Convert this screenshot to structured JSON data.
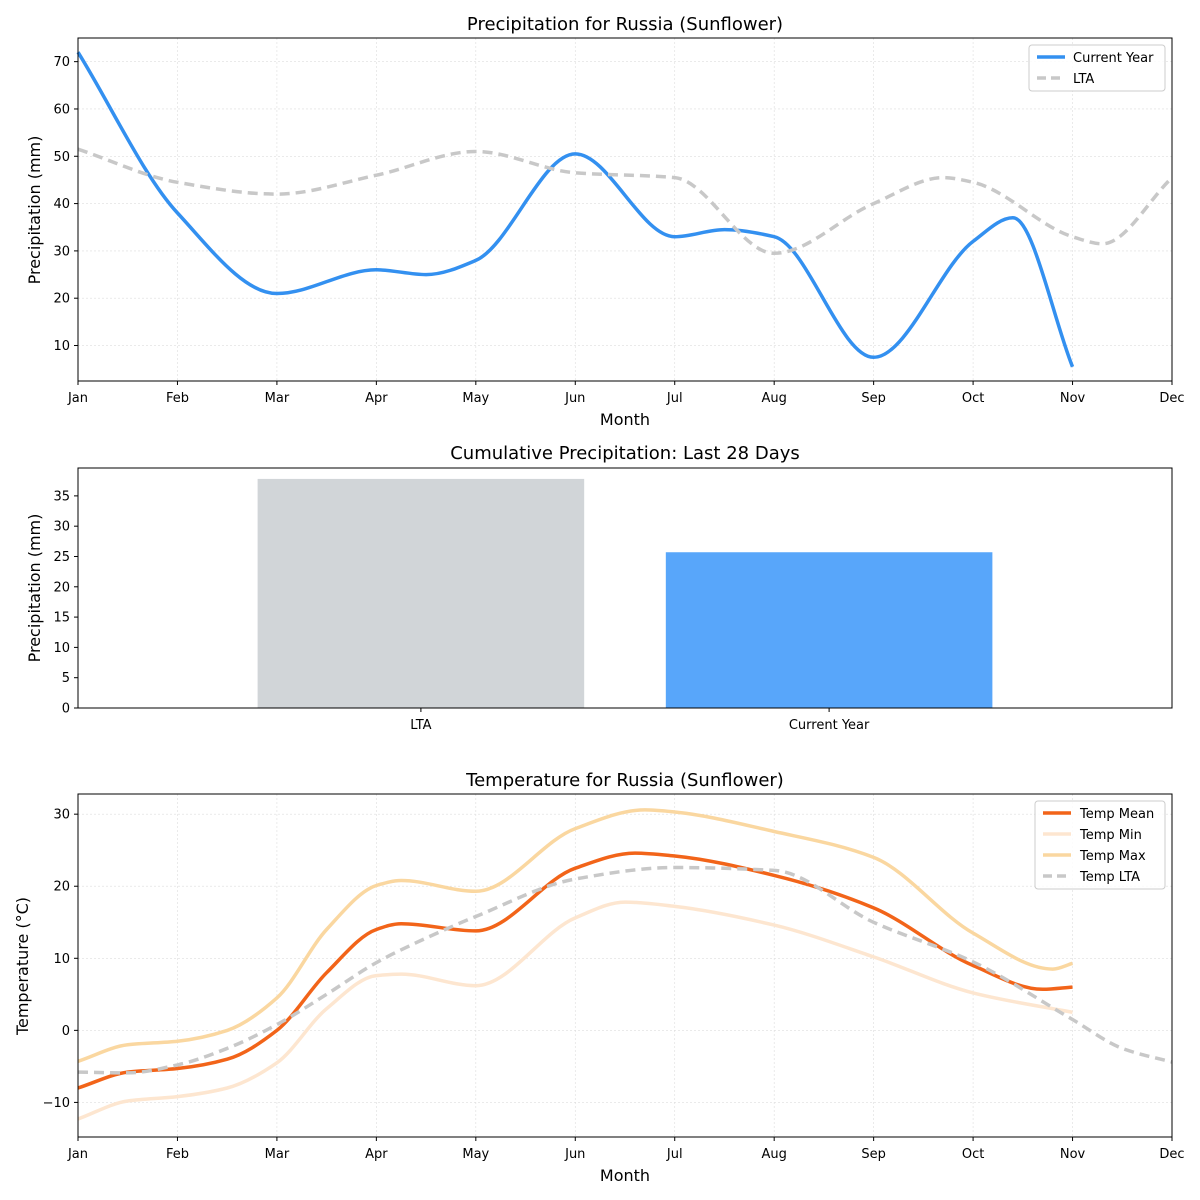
{
  "chart_data": [
    {
      "type": "line",
      "title": "Precipitation for Russia (Sunflower)",
      "xlabel": "Month",
      "ylabel": "Precipitation (mm)",
      "xlim": [
        0,
        11
      ],
      "ylim": [
        2.5,
        75
      ],
      "yticks": [
        10,
        20,
        30,
        40,
        50,
        60,
        70
      ],
      "categories": [
        "Jan",
        "Feb",
        "Mar",
        "Apr",
        "May",
        "Jun",
        "Jul",
        "Aug",
        "Sep",
        "Oct",
        "Nov",
        "Dec"
      ],
      "grid": true,
      "legend_position": "top-right",
      "series": [
        {
          "name": "Current Year",
          "color": "#3390f0",
          "style": "solid",
          "x": [
            0,
            1,
            2,
            3,
            3.5,
            4,
            5,
            6,
            6.5,
            7,
            8,
            9,
            9.4,
            10
          ],
          "values": [
            72,
            38,
            21,
            26,
            25,
            28,
            50.5,
            33,
            34.5,
            33,
            7.5,
            32,
            37,
            5.5
          ]
        },
        {
          "name": "LTA",
          "color": "#c8c8c8",
          "style": "dashed",
          "x": [
            0,
            1,
            2,
            3,
            4,
            5,
            6,
            7,
            8,
            8.7,
            9,
            10,
            10.3,
            11
          ],
          "values": [
            51.5,
            44.5,
            42,
            46,
            51,
            46.5,
            45.5,
            29.5,
            40,
            45.5,
            44.5,
            33,
            31.5,
            45.5
          ]
        }
      ]
    },
    {
      "type": "bar",
      "title": "Cumulative Precipitation: Last 28 Days",
      "xlabel": "",
      "ylabel": "Precipitation (mm)",
      "ylim": [
        0,
        39.6
      ],
      "yticks": [
        0,
        5,
        10,
        15,
        20,
        25,
        30,
        35
      ],
      "categories": [
        "LTA",
        "Current Year"
      ],
      "values": [
        37.8,
        25.7
      ],
      "colors": [
        "#d1d5d8",
        "#58a6fa"
      ]
    },
    {
      "type": "line",
      "title": "Temperature for Russia (Sunflower)",
      "xlabel": "Month",
      "ylabel": "Temperature (°C)",
      "xlim": [
        0,
        11
      ],
      "ylim": [
        -14.8,
        32.8
      ],
      "yticks": [
        -10,
        0,
        10,
        20,
        30
      ],
      "categories": [
        "Jan",
        "Feb",
        "Mar",
        "Apr",
        "May",
        "Jun",
        "Jul",
        "Aug",
        "Sep",
        "Oct",
        "Nov",
        "Dec"
      ],
      "grid": true,
      "legend_position": "top-right",
      "series": [
        {
          "name": "Temp Mean",
          "color": "#f26419",
          "style": "solid",
          "x": [
            0,
            0.5,
            1,
            1.5,
            2,
            2.5,
            3,
            3.25,
            4,
            5,
            5.6,
            6,
            7,
            8,
            9,
            9.7,
            10
          ],
          "values": [
            -8,
            -5.8,
            -5.3,
            -4,
            0,
            8,
            14,
            14.8,
            13.8,
            22.5,
            24.6,
            24.2,
            21.5,
            17,
            9,
            5.7,
            6
          ]
        },
        {
          "name": "Temp Min",
          "color": "#fde6d0",
          "style": "solid",
          "x": [
            0,
            0.5,
            1,
            1.5,
            2,
            2.5,
            3,
            3.25,
            4,
            5,
            5.5,
            6,
            7,
            8,
            9,
            10
          ],
          "values": [
            -12.3,
            -9.8,
            -9.2,
            -8,
            -4.5,
            3,
            7.6,
            7.8,
            6.2,
            15.6,
            17.8,
            17.2,
            14.6,
            10.2,
            5.2,
            2.5
          ]
        },
        {
          "name": "Temp Max",
          "color": "#fad7a0",
          "style": "solid",
          "x": [
            0,
            0.5,
            1,
            1.5,
            2,
            2.5,
            3,
            3.25,
            4,
            5,
            5.7,
            6,
            7,
            8,
            9,
            9.8,
            10
          ],
          "values": [
            -4.3,
            -2,
            -1.5,
            0,
            4.5,
            14,
            20.1,
            20.8,
            19.3,
            28,
            30.6,
            30.3,
            27.6,
            24,
            13.5,
            8.5,
            9.3
          ]
        },
        {
          "name": "Temp LTA",
          "color": "#c8c8c8",
          "style": "dashed",
          "x": [
            0,
            0.5,
            1,
            1.5,
            2,
            2.5,
            3,
            3.5,
            4,
            5,
            6,
            7,
            8,
            9,
            10,
            10.5,
            11
          ],
          "values": [
            -5.8,
            -5.9,
            -4.8,
            -2.5,
            0.8,
            5,
            9.4,
            12.8,
            15.8,
            21,
            22.6,
            22.2,
            15,
            9.5,
            1.5,
            -2.5,
            -4.4
          ]
        }
      ]
    }
  ]
}
